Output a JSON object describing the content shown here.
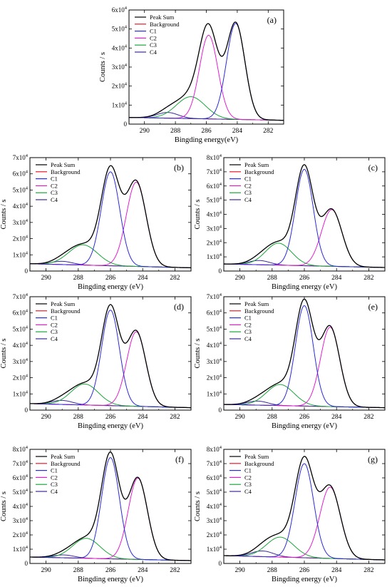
{
  "series_styles": [
    {
      "key": "peak_sum",
      "color": "#000000"
    },
    {
      "key": "background",
      "color": "#e8192c"
    },
    {
      "key": "c1",
      "color": "#2a2ad8"
    },
    {
      "key": "c2",
      "color": "#e020d0"
    },
    {
      "key": "c3",
      "color": "#1aa63a"
    },
    {
      "key": "c4",
      "color": "#3a2a9a"
    }
  ],
  "chart_data": [
    {
      "panel": "(a)",
      "type": "line",
      "xlabel": "Bingding energy(eV)",
      "ylabel": "Counts / s",
      "xlim": [
        291,
        281
      ],
      "ylim": [
        0,
        60000
      ],
      "xticks": [
        290,
        288,
        286,
        284,
        282
      ],
      "yticks": [
        "0",
        "1x10^4",
        "2x10^4",
        "3x10^4",
        "4x10^4",
        "5x10^4",
        "6x10^4"
      ],
      "legend": [
        "Peak Sum",
        "Background",
        "C1",
        "C2",
        "C3",
        "C4"
      ],
      "legend_position": "top-left",
      "background": {
        "left": 3500,
        "right": 2000
      },
      "peaks": {
        "c1": {
          "center": 284.1,
          "height": 50500,
          "fwhm": 1.4
        },
        "c2": {
          "center": 285.85,
          "height": 44000,
          "fwhm": 1.4
        },
        "c3": {
          "center": 287.0,
          "height": 11500,
          "fwhm": 2.2
        },
        "c4": {
          "center": 288.5,
          "height": 3000,
          "fwhm": 1.6
        }
      }
    },
    {
      "panel": "(b)",
      "type": "line",
      "xlabel": "Bingding energy (eV)",
      "ylabel": "Counts / s",
      "xlim": [
        291,
        281
      ],
      "ylim": [
        0,
        70000
      ],
      "xticks": [
        290,
        288,
        286,
        284,
        282
      ],
      "yticks": [
        "0",
        "1x10^4",
        "2x10^4",
        "3x10^4",
        "4x10^4",
        "5x10^4",
        "6x10^4",
        "7x10^4"
      ],
      "legend": [
        "Peak Sum",
        "Background",
        "C1",
        "C2",
        "C3",
        "C4"
      ],
      "legend_position": "top-left",
      "background": {
        "left": 4500,
        "right": 2000
      },
      "peaks": {
        "c1": {
          "center": 286.0,
          "height": 58000,
          "fwhm": 1.35
        },
        "c2": {
          "center": 284.4,
          "height": 52000,
          "fwhm": 1.45
        },
        "c3": {
          "center": 287.7,
          "height": 12500,
          "fwhm": 2.1
        },
        "c4": {
          "center": 289.0,
          "height": 2000,
          "fwhm": 1.5
        }
      }
    },
    {
      "panel": "(c)",
      "type": "line",
      "xlabel": "Bingding energy (eV)",
      "ylabel": "Counts / s",
      "xlim": [
        291,
        281
      ],
      "ylim": [
        0,
        80000
      ],
      "xticks": [
        290,
        288,
        286,
        284,
        282
      ],
      "yticks": [
        "0",
        "1x10^4",
        "2x10^4",
        "3x10^4",
        "4x10^4",
        "5x10^4",
        "6x10^4",
        "7x10^4",
        "8x10^4"
      ],
      "legend": [
        "Peak Sum",
        "Background",
        "C1",
        "C2",
        "C3",
        "C4"
      ],
      "legend_position": "top-left",
      "background": {
        "left": 5000,
        "right": 2500
      },
      "peaks": {
        "c1": {
          "center": 286.0,
          "height": 68000,
          "fwhm": 1.3
        },
        "c2": {
          "center": 284.3,
          "height": 40000,
          "fwhm": 1.5
        },
        "c3": {
          "center": 287.6,
          "height": 15500,
          "fwhm": 1.9
        },
        "c4": {
          "center": 288.8,
          "height": 3000,
          "fwhm": 1.5
        }
      }
    },
    {
      "panel": "(d)",
      "type": "line",
      "xlabel": "Bingding energy (eV)",
      "ylabel": "Counts / s",
      "xlim": [
        291,
        281
      ],
      "ylim": [
        0,
        70000
      ],
      "xticks": [
        290,
        288,
        286,
        284,
        282
      ],
      "yticks": [
        "0",
        "1x10^4",
        "2x10^4",
        "3x10^4",
        "4x10^4",
        "5x10^4",
        "6x10^4",
        "7x10^4"
      ],
      "legend": [
        "Peak Sum",
        "Background",
        "C1",
        "C2",
        "C3",
        "C4"
      ],
      "legend_position": "top-left",
      "background": {
        "left": 4000,
        "right": 1500
      },
      "peaks": {
        "c1": {
          "center": 286.0,
          "height": 59000,
          "fwhm": 1.3
        },
        "c2": {
          "center": 284.4,
          "height": 46000,
          "fwhm": 1.4
        },
        "c3": {
          "center": 287.6,
          "height": 13000,
          "fwhm": 2.0
        },
        "c4": {
          "center": 289.0,
          "height": 2500,
          "fwhm": 1.5
        }
      }
    },
    {
      "panel": "(e)",
      "type": "line",
      "xlabel": "Bingding energy (eV)",
      "ylabel": "Counts / s",
      "xlim": [
        291,
        281
      ],
      "ylim": [
        0,
        70000
      ],
      "xticks": [
        290,
        288,
        286,
        284,
        282
      ],
      "yticks": [
        "0",
        "1x10^4",
        "2x10^4",
        "3x10^4",
        "4x10^4",
        "5x10^4",
        "6x10^4",
        "7x10^4"
      ],
      "legend": [
        "Peak Sum",
        "Background",
        "C1",
        "C2",
        "C3",
        "C4"
      ],
      "legend_position": "top-left",
      "background": {
        "left": 3500,
        "right": 1500
      },
      "peaks": {
        "c1": {
          "center": 286.0,
          "height": 62000,
          "fwhm": 1.3
        },
        "c2": {
          "center": 284.4,
          "height": 49000,
          "fwhm": 1.4
        },
        "c3": {
          "center": 287.5,
          "height": 13000,
          "fwhm": 2.0
        },
        "c4": {
          "center": 288.9,
          "height": 2500,
          "fwhm": 1.5
        }
      }
    },
    {
      "panel": "(f)",
      "type": "line",
      "xlabel": "Bingding energy (eV)",
      "ylabel": "Counts / s",
      "xlim": [
        291,
        281
      ],
      "ylim": [
        0,
        80000
      ],
      "xticks": [
        290,
        288,
        286,
        284,
        282
      ],
      "yticks": [
        "0",
        "1x10^4",
        "2x10^4",
        "3x10^4",
        "4x10^4",
        "5x10^4",
        "6x10^4",
        "7x10^4",
        "8x10^4"
      ],
      "legend": [
        "Peak Sum",
        "Background",
        "C1",
        "C2",
        "C3",
        "C4"
      ],
      "legend_position": "top-left",
      "background": {
        "left": 4500,
        "right": 2000
      },
      "peaks": {
        "c1": {
          "center": 286.0,
          "height": 71000,
          "fwhm": 1.3
        },
        "c2": {
          "center": 284.3,
          "height": 57000,
          "fwhm": 1.4
        },
        "c3": {
          "center": 287.5,
          "height": 14000,
          "fwhm": 2.0
        },
        "c4": {
          "center": 288.9,
          "height": 2000,
          "fwhm": 1.5
        }
      }
    },
    {
      "panel": "(g)",
      "type": "line",
      "xlabel": "Bingding energy (eV)",
      "ylabel": "Counts / s",
      "xlim": [
        291,
        281
      ],
      "ylim": [
        0,
        80000
      ],
      "xticks": [
        290,
        288,
        286,
        284,
        282
      ],
      "yticks": [
        "0",
        "1x10^4",
        "2x10^4",
        "3x10^4",
        "4x10^4",
        "5x10^4",
        "6x10^4",
        "7x10^4",
        "8x10^4"
      ],
      "legend": [
        "Peak Sum",
        "Background",
        "C1",
        "C2",
        "C3",
        "C4"
      ],
      "legend_position": "top-left",
      "background": {
        "left": 5500,
        "right": 2500
      },
      "peaks": {
        "c1": {
          "center": 286.0,
          "height": 66000,
          "fwhm": 1.35
        },
        "c2": {
          "center": 284.4,
          "height": 50000,
          "fwhm": 1.5
        },
        "c3": {
          "center": 287.5,
          "height": 14000,
          "fwhm": 2.0
        },
        "c4": {
          "center": 288.6,
          "height": 4000,
          "fwhm": 1.6
        }
      }
    }
  ]
}
